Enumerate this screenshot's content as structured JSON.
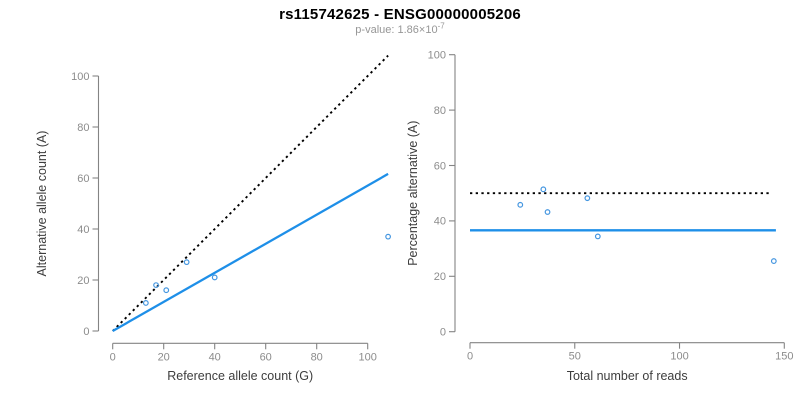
{
  "header": {
    "title": "rs115742625 - ENSG00000005206",
    "subtitle_base": "p-value: 1.86×10",
    "subtitle_exponent": "-7"
  },
  "colors": {
    "fit_line_blue": "#1E8FE8",
    "point_blue": "#4496E0",
    "dotted_line_black": "#000000",
    "axis_gray": "#848484",
    "tick_label_gray": "#8C8C8C",
    "axis_title_dark": "#3D3D3D"
  },
  "chart_data": [
    {
      "type": "scatter",
      "panel": "left",
      "xlabel": "Reference allele count (G)",
      "ylabel": "Alternative allele count (A)",
      "xticks": [
        0,
        20,
        40,
        60,
        80,
        100
      ],
      "yticks": [
        0,
        20,
        40,
        60,
        80,
        100
      ],
      "xlim": [
        0,
        108
      ],
      "ylim": [
        0,
        108
      ],
      "grid": false,
      "legend": "none",
      "points": [
        [
          13,
          11
        ],
        [
          17,
          18
        ],
        [
          21,
          16
        ],
        [
          29,
          27
        ],
        [
          40,
          21
        ],
        [
          108,
          37
        ]
      ],
      "identity_line": {
        "style": "dotted",
        "x1": 0,
        "y1": 0,
        "x2": 108,
        "y2": 108
      },
      "fit_line": {
        "style": "solid",
        "slope": 0.57,
        "x1": 0,
        "y1": 0,
        "x2": 108,
        "y2": 61.6
      }
    },
    {
      "type": "scatter",
      "panel": "right",
      "xlabel": "Total number of reads",
      "ylabel": "Percentage alternative (A)",
      "xticks": [
        0,
        50,
        100,
        150
      ],
      "yticks": [
        0,
        20,
        40,
        60,
        80,
        100
      ],
      "xlim": [
        0,
        150
      ],
      "ylim": [
        0,
        100
      ],
      "grid": false,
      "legend": "none",
      "points": [
        [
          24,
          45.8
        ],
        [
          35,
          51.4
        ],
        [
          37,
          43.2
        ],
        [
          56,
          48.2
        ],
        [
          61,
          34.4
        ],
        [
          145,
          25.5
        ]
      ],
      "reference_line": {
        "style": "dotted",
        "y": 50,
        "x1": 0,
        "x2": 143
      },
      "fit_line": {
        "style": "solid",
        "y": 36.6,
        "x1": 0,
        "x2": 146
      }
    }
  ]
}
